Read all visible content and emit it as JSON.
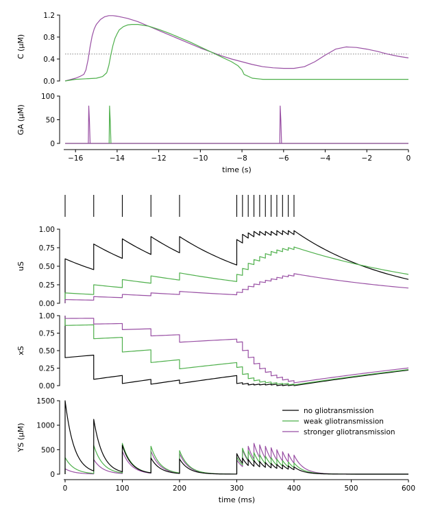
{
  "colors": {
    "none": "#000000",
    "weak": "#4daf4a",
    "strong": "#984ea3",
    "threshold": "#808080"
  },
  "chart_data": [
    {
      "id": "top-c",
      "type": "line",
      "ylabel": "C (μM)",
      "xlim": [
        -16.5,
        0
      ],
      "ylim": [
        0,
        1.25
      ],
      "yticks": [
        0.0,
        0.4,
        0.8,
        1.2
      ],
      "yticklabels": [
        "0.0",
        "0.4",
        "0.8",
        "1.2"
      ],
      "threshold": 0.49,
      "series": [
        {
          "key": "strong",
          "x": [
            -16.5,
            -16,
            -15.8,
            -15.6,
            -15.5,
            -15.4,
            -15.3,
            -15.2,
            -15.1,
            -15,
            -14.8,
            -14.6,
            -14.4,
            -14.2,
            -14,
            -13.5,
            -13,
            -12.5,
            -12,
            -11.5,
            -11,
            -10.5,
            -10,
            -9.5,
            -9,
            -8.5,
            -8,
            -7.5,
            -7,
            -6.5,
            -6,
            -5.5,
            -5,
            -4.5,
            -4,
            -3.5,
            -3,
            -2.5,
            -2,
            -1.5,
            -1,
            -0.5,
            0
          ],
          "y": [
            0.0,
            0.05,
            0.08,
            0.12,
            0.2,
            0.38,
            0.62,
            0.82,
            0.95,
            1.03,
            1.12,
            1.17,
            1.19,
            1.19,
            1.18,
            1.14,
            1.08,
            1.0,
            0.92,
            0.84,
            0.76,
            0.68,
            0.6,
            0.53,
            0.46,
            0.4,
            0.35,
            0.3,
            0.26,
            0.24,
            0.23,
            0.23,
            0.26,
            0.35,
            0.47,
            0.58,
            0.62,
            0.61,
            0.58,
            0.54,
            0.49,
            0.45,
            0.42
          ]
        },
        {
          "key": "weak",
          "x": [
            -16.5,
            -16,
            -15.5,
            -15,
            -14.7,
            -14.5,
            -14.4,
            -14.3,
            -14.2,
            -14.1,
            -14,
            -13.9,
            -13.7,
            -13.5,
            -13.3,
            -13,
            -12.5,
            -12,
            -11.5,
            -11,
            -10.5,
            -10,
            -9.5,
            -9,
            -8.5,
            -8.2,
            -8,
            -7.9,
            -7.5,
            -7,
            -6,
            -5,
            -4,
            -3,
            -2,
            -1,
            0
          ],
          "y": [
            0.0,
            0.03,
            0.04,
            0.05,
            0.08,
            0.15,
            0.28,
            0.48,
            0.65,
            0.78,
            0.86,
            0.93,
            0.99,
            1.02,
            1.03,
            1.03,
            1.0,
            0.94,
            0.87,
            0.79,
            0.71,
            0.62,
            0.53,
            0.44,
            0.35,
            0.28,
            0.2,
            0.12,
            0.05,
            0.03,
            0.03,
            0.03,
            0.03,
            0.03,
            0.03,
            0.03,
            0.03
          ]
        }
      ]
    },
    {
      "id": "top-g",
      "type": "line",
      "ylabel": "GA (μM)",
      "xlim": [
        -16.5,
        0
      ],
      "ylim": [
        0,
        100
      ],
      "yticks": [
        0,
        50,
        100
      ],
      "yticklabels": [
        "0",
        "50",
        "100"
      ],
      "xticks": [
        -16,
        -14,
        -12,
        -10,
        -8,
        -6,
        -4,
        -2,
        0
      ],
      "xticklabels": [
        "−16",
        "−14",
        "−12",
        "−10",
        "−8",
        "−6",
        "−4",
        "−2",
        "0"
      ],
      "xlabel": "time (s)",
      "spikes": [
        {
          "key": "strong",
          "t": -15.35,
          "height": 79
        },
        {
          "key": "weak",
          "t": -14.35,
          "height": 79
        },
        {
          "key": "strong",
          "t": -6.15,
          "height": 79
        }
      ]
    },
    {
      "id": "raster",
      "type": "scatter",
      "spikes_ms": [
        0,
        50,
        100,
        150,
        200,
        300,
        310,
        320,
        330,
        340,
        350,
        360,
        370,
        380,
        390,
        400
      ]
    },
    {
      "id": "us",
      "type": "line",
      "ylabel": "uS",
      "xlim": [
        0,
        600
      ],
      "ylim": [
        0,
        1.0
      ],
      "yticks": [
        0,
        0.25,
        0.5,
        0.75,
        1.0
      ],
      "yticklabels": [
        "0.00",
        "0.25",
        "0.50",
        "0.75",
        "1.00"
      ],
      "series": [
        {
          "key": "none",
          "start": 0.0,
          "jumps": [
            0.6,
            0.8,
            0.87,
            0.9,
            0.9,
            0.86,
            0.93,
            0.95,
            0.97,
            0.97,
            0.97,
            0.97,
            0.98,
            0.98,
            0.98,
            0.98
          ],
          "decay_ms": 180
        },
        {
          "key": "weak",
          "start": 0.0,
          "jumps": [
            0.14,
            0.25,
            0.32,
            0.37,
            0.41,
            0.39,
            0.47,
            0.54,
            0.59,
            0.63,
            0.67,
            0.7,
            0.72,
            0.74,
            0.75,
            0.76
          ],
          "decay_ms": 300
        },
        {
          "key": "strong",
          "start": 0.0,
          "jumps": [
            0.05,
            0.09,
            0.12,
            0.14,
            0.16,
            0.15,
            0.19,
            0.23,
            0.26,
            0.29,
            0.31,
            0.33,
            0.35,
            0.37,
            0.38,
            0.4
          ],
          "decay_ms": 300
        }
      ]
    },
    {
      "id": "xs",
      "type": "line",
      "ylabel": "xS",
      "xlim": [
        0,
        600
      ],
      "ylim": [
        0,
        1.0
      ],
      "yticks": [
        0,
        0.25,
        0.5,
        0.75,
        1.0
      ],
      "yticklabels": [
        "0.00",
        "0.25",
        "0.50",
        "0.75",
        "1.00"
      ],
      "series": [
        {
          "key": "none",
          "after": [
            0.4,
            0.09,
            0.03,
            0.02,
            0.03,
            0.03,
            0.02,
            0.01,
            0.01,
            0.01,
            0.01,
            0.01,
            0.0,
            0.0,
            0.0,
            0.0
          ],
          "recover_ms": 800
        },
        {
          "key": "weak",
          "after": [
            0.86,
            0.67,
            0.48,
            0.33,
            0.24,
            0.26,
            0.16,
            0.1,
            0.07,
            0.05,
            0.04,
            0.03,
            0.02,
            0.02,
            0.01,
            0.01
          ],
          "recover_ms": 800
        },
        {
          "key": "strong",
          "after": [
            0.96,
            0.88,
            0.8,
            0.71,
            0.62,
            0.62,
            0.5,
            0.4,
            0.31,
            0.24,
            0.19,
            0.14,
            0.11,
            0.08,
            0.06,
            0.04
          ],
          "recover_ms": 800
        }
      ]
    },
    {
      "id": "ys",
      "type": "line",
      "ylabel": "YS (μM)",
      "xlim": [
        0,
        600
      ],
      "ylim": [
        0,
        1500
      ],
      "yticks": [
        0,
        500,
        1000,
        1500
      ],
      "yticklabels": [
        "0",
        "500",
        "1000",
        "1500"
      ],
      "xticks": [
        0,
        100,
        200,
        300,
        400,
        500,
        600
      ],
      "xticklabels": [
        "0",
        "100",
        "200",
        "300",
        "400",
        "500",
        "600"
      ],
      "xlabel": "time (ms)",
      "legend_position": "upper-right",
      "series": [
        {
          "key": "none",
          "name": "no gliotransmission",
          "peaks": [
            1500,
            1120,
            590,
            330,
            310,
            420,
            330,
            300,
            280,
            260,
            240,
            220,
            200,
            190,
            170,
            150
          ],
          "tau_ms": 16
        },
        {
          "key": "weak",
          "name": "weak gliotransmission",
          "peaks": [
            340,
            590,
            630,
            570,
            480,
            350,
            530,
            480,
            440,
            400,
            370,
            340,
            310,
            280,
            250,
            230
          ],
          "tau_ms": 16
        },
        {
          "key": "strong",
          "name": "stronger gliotransmission",
          "peaks": [
            110,
            300,
            470,
            470,
            420,
            290,
            500,
            570,
            630,
            600,
            570,
            540,
            500,
            460,
            420,
            390
          ],
          "tau_ms": 16
        }
      ]
    }
  ]
}
